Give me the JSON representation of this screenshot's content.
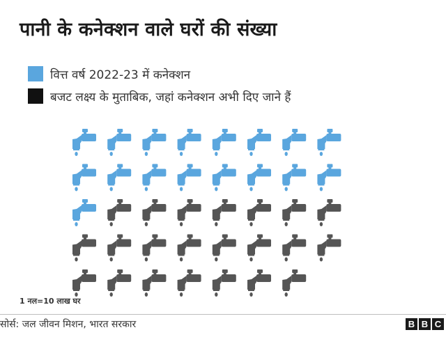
{
  "title": "पानी के कनेक्शन वाले घरों की संख्या",
  "legend": [
    {
      "label": "वित्त वर्ष 2022-23 में कनेक्शन",
      "color": "#5aa6de"
    },
    {
      "label": "बजट लक्ष्य के मुताबिक, जहां कनेक्शन अभी दिए जाने हैं",
      "color": "#111111"
    }
  ],
  "chart_data": {
    "type": "pictogram",
    "unit_note": "1 नल=10 लाख घर",
    "icon": "water-tap-icon",
    "per_row": 8,
    "series": [
      {
        "name": "वित्त वर्ष 2022-23 में कनेक्शन",
        "count": 17,
        "color": "#5aa6de"
      },
      {
        "name": "बजट लक्ष्य के मुताबिक, जहां कनेक्शन अभी दिए जाने हैं",
        "count": 22,
        "color": "#555555"
      }
    ]
  },
  "footer": {
    "source": "सोर्स: जल जीवन मिशन, भारत सरकार",
    "logo_letters": [
      "B",
      "B",
      "C"
    ]
  }
}
